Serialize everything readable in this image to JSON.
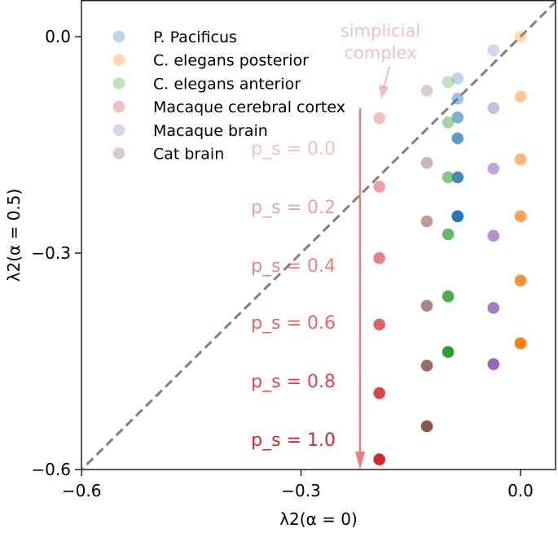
{
  "chart_data": {
    "type": "scatter",
    "title": "",
    "xlabel": "λ2(α = 0)",
    "ylabel": "λ2(α = 0.5)",
    "xlim": [
      -0.6,
      0.05
    ],
    "ylim": [
      -0.6,
      0.05
    ],
    "xticks": [
      "-0.6",
      "-0.3",
      "0.0"
    ],
    "yticks": [
      "0.0",
      "-0.3",
      "-0.6"
    ],
    "xtick_values": [
      -0.6,
      -0.3,
      0.0
    ],
    "ytick_values": [
      0.0,
      -0.3,
      -0.6
    ],
    "grid": false,
    "legend_placement": "top-left",
    "reference_line": "y = x (dashed grey)",
    "ps_values": [
      0.0,
      0.2,
      0.4,
      0.6,
      0.8,
      1.0
    ],
    "ps_labels": [
      "p_s = 0.0",
      "p_s = 0.2",
      "p_s = 0.4",
      "p_s = 0.6",
      "p_s = 0.8",
      "p_s = 1.0"
    ],
    "annotation": [
      "simplicial",
      "complex"
    ],
    "series": [
      {
        "name": "P. Pacificus",
        "color": "#1f77b4",
        "x": [
          -0.086,
          -0.086,
          -0.086,
          -0.086,
          -0.086,
          -0.086
        ],
        "y": [
          -0.058,
          -0.086,
          -0.112,
          -0.141,
          -0.195,
          -0.249
        ]
      },
      {
        "name": "C. elegans posterior",
        "color": "#ff7f0e",
        "x": [
          0.0,
          0.0,
          0.0,
          0.0,
          0.0,
          0.0
        ],
        "y": [
          0.0,
          -0.083,
          -0.17,
          -0.249,
          -0.338,
          -0.425
        ]
      },
      {
        "name": "C. elegans anterior",
        "color": "#2ca02c",
        "x": [
          -0.099,
          -0.099,
          -0.099,
          -0.099,
          -0.099,
          -0.099
        ],
        "y": [
          -0.063,
          -0.119,
          -0.195,
          -0.274,
          -0.36,
          -0.437
        ]
      },
      {
        "name": "Macaque cerebral cortex",
        "color": "#d62728",
        "x": [
          -0.193,
          -0.193,
          -0.193,
          -0.193,
          -0.193,
          -0.193
        ],
        "y": [
          -0.113,
          -0.208,
          -0.307,
          -0.399,
          -0.494,
          -0.586
        ]
      },
      {
        "name": "Macaque brain",
        "color": "#9467bd",
        "x": [
          -0.037,
          -0.037,
          -0.037,
          -0.037,
          -0.037,
          -0.037
        ],
        "y": [
          -0.019,
          -0.099,
          -0.183,
          -0.276,
          -0.376,
          -0.454
        ]
      },
      {
        "name": "Cat brain",
        "color": "#8c564b",
        "x": [
          -0.128,
          -0.128,
          -0.128,
          -0.128,
          -0.128,
          -0.128
        ],
        "y": [
          -0.075,
          -0.175,
          -0.256,
          -0.373,
          -0.456,
          -0.54
        ]
      }
    ]
  }
}
